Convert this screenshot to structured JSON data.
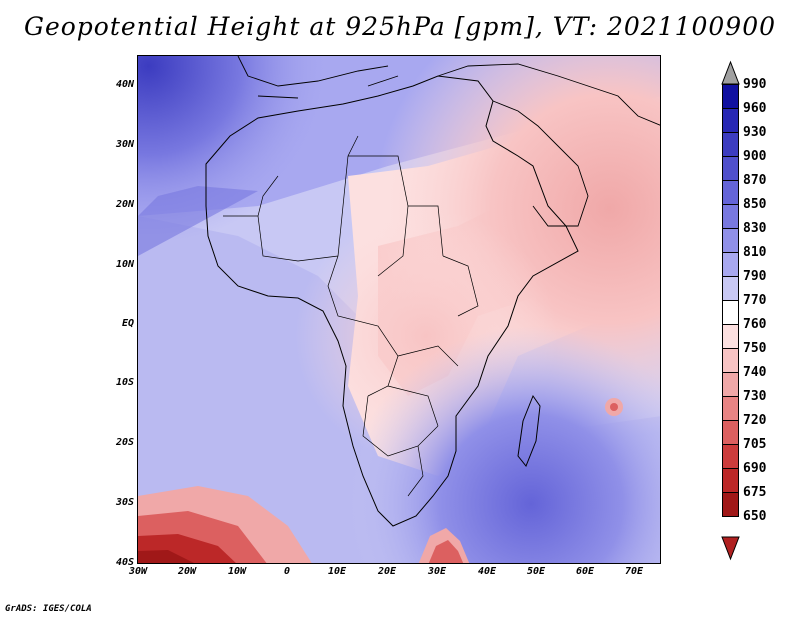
{
  "title": "Geopotential Height at 925hPa [gpm], VT: 2021100900",
  "footer": "GrADS: IGES/COLA",
  "y_axis_labels": [
    "40N",
    "30N",
    "20N",
    "10N",
    "EQ",
    "10S",
    "20S",
    "30S",
    "40S"
  ],
  "x_axis_labels": [
    "30W",
    "20W",
    "10W",
    "0",
    "10E",
    "20E",
    "30E",
    "40E",
    "50E",
    "60E",
    "70E"
  ],
  "legend": {
    "levels": [
      "990",
      "960",
      "930",
      "900",
      "870",
      "850",
      "830",
      "810",
      "790",
      "770",
      "760",
      "750",
      "740",
      "730",
      "720",
      "705",
      "690",
      "675",
      "650"
    ],
    "colors": [
      "#a0a0a0",
      "#1010a0",
      "#2828b4",
      "#3c3cc0",
      "#5050cc",
      "#6464d8",
      "#7878e0",
      "#9090e8",
      "#a8a8f0",
      "#c8c8f4",
      "#ffffff",
      "#fce0e0",
      "#f8c4c4",
      "#f0a8a8",
      "#e88484",
      "#dc6060",
      "#cc3c3c",
      "#bc2828",
      "#a01818",
      "#b02020"
    ]
  },
  "map": {
    "region": "Africa",
    "variable": "Geopotential Height",
    "level": "925hPa",
    "units": "gpm",
    "valid_time": "2021100900"
  }
}
